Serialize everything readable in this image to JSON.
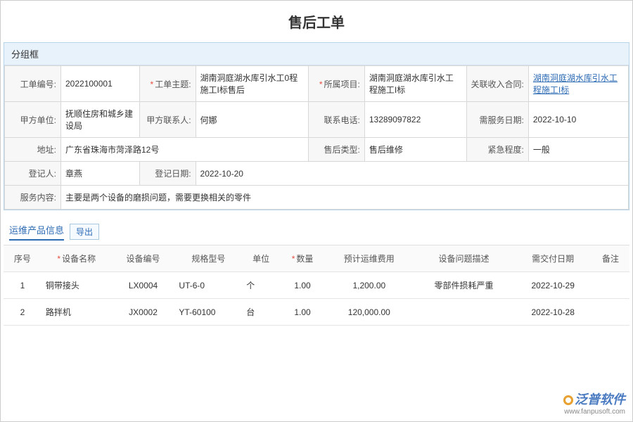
{
  "title": "售后工单",
  "groupbox_title": "分组框",
  "form": {
    "r1": {
      "order_no_label": "工单编号:",
      "order_no": "2022100001",
      "subject_label": "工单主题:",
      "subject": "湖南洞庭湖水库引水工0程施工I标售后",
      "project_label": "所属项目:",
      "project": "湖南洞庭湖水库引水工程施工I标",
      "contract_label": "关联收入合同:",
      "contract": "湖南洞庭湖水库引水工程施工I标"
    },
    "r2": {
      "party_a_label": "甲方单位:",
      "party_a": "抚顺住房和城乡建设局",
      "contact_label": "甲方联系人:",
      "contact": "何娜",
      "phone_label": "联系电话:",
      "phone": "13289097822",
      "service_date_label": "需服务日期:",
      "service_date": "2022-10-10"
    },
    "r3": {
      "address_label": "地址:",
      "address": "广东省珠海市菏泽路12号",
      "type_label": "售后类型:",
      "type": "售后维修",
      "urgency_label": "紧急程度:",
      "urgency": "一般"
    },
    "r4": {
      "registrant_label": "登记人:",
      "registrant": "章燕",
      "reg_date_label": "登记日期:",
      "reg_date": "2022-10-20"
    },
    "r5": {
      "content_label": "服务内容:",
      "content": "主要是两个设备的磨损问题，需要更换相关的零件"
    }
  },
  "product_section": {
    "tab": "运维产品信息",
    "export": "导出",
    "columns": {
      "seq": "序号",
      "name": "设备名称",
      "code": "设备编号",
      "spec": "规格型号",
      "unit": "单位",
      "qty": "数量",
      "cost": "预计运维费用",
      "problem": "设备问题描述",
      "due": "需交付日期",
      "remark": "备注"
    },
    "rows": [
      {
        "seq": "1",
        "name": "铜带接头",
        "code": "LX0004",
        "spec": "UT-6-0",
        "unit": "个",
        "qty": "1.00",
        "cost": "1,200.00",
        "problem": "零部件损耗严重",
        "due": "2022-10-29",
        "remark": ""
      },
      {
        "seq": "2",
        "name": "路拌机",
        "code": "JX0002",
        "spec": "YT-60100",
        "unit": "台",
        "qty": "1.00",
        "cost": "120,000.00",
        "problem": "",
        "due": "2022-10-28",
        "remark": ""
      }
    ]
  },
  "watermark": {
    "brand": "泛普软件",
    "url": "www.fanpusoft.com"
  }
}
